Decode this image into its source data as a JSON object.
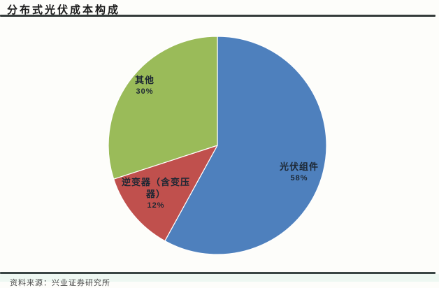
{
  "page": {
    "title": "分布式光伏成本构成",
    "source_note": "资料来源：兴业证券研究所"
  },
  "chart_data": {
    "type": "pie",
    "title": "分布式光伏成本构成",
    "start_angle_deg": 0,
    "direction": "clockwise",
    "slices": [
      {
        "label": "光伏组件",
        "value_pct": 58,
        "color": "#4e80bd"
      },
      {
        "label": "逆变器（含变压器）",
        "value_pct": 12,
        "color": "#c0504d"
      },
      {
        "label": "其他",
        "value_pct": 30,
        "color": "#9abb59"
      }
    ],
    "label_text_color": "#1d2733",
    "legend": "none",
    "labels_on_slices": true
  },
  "slice_labels": {
    "pv_module": {
      "line1": "光伏组件",
      "line2": "58%"
    },
    "inverter": {
      "line1": "逆变器（含变压",
      "line2": "器）",
      "line3": "12%"
    },
    "other": {
      "line1": "其他",
      "line2": "30%"
    }
  },
  "colors": {
    "rule_top": "#343b3a",
    "rule_bottom": "#3a4544",
    "footer_bg": "#eef8f2",
    "background": "#fdfdfa"
  }
}
